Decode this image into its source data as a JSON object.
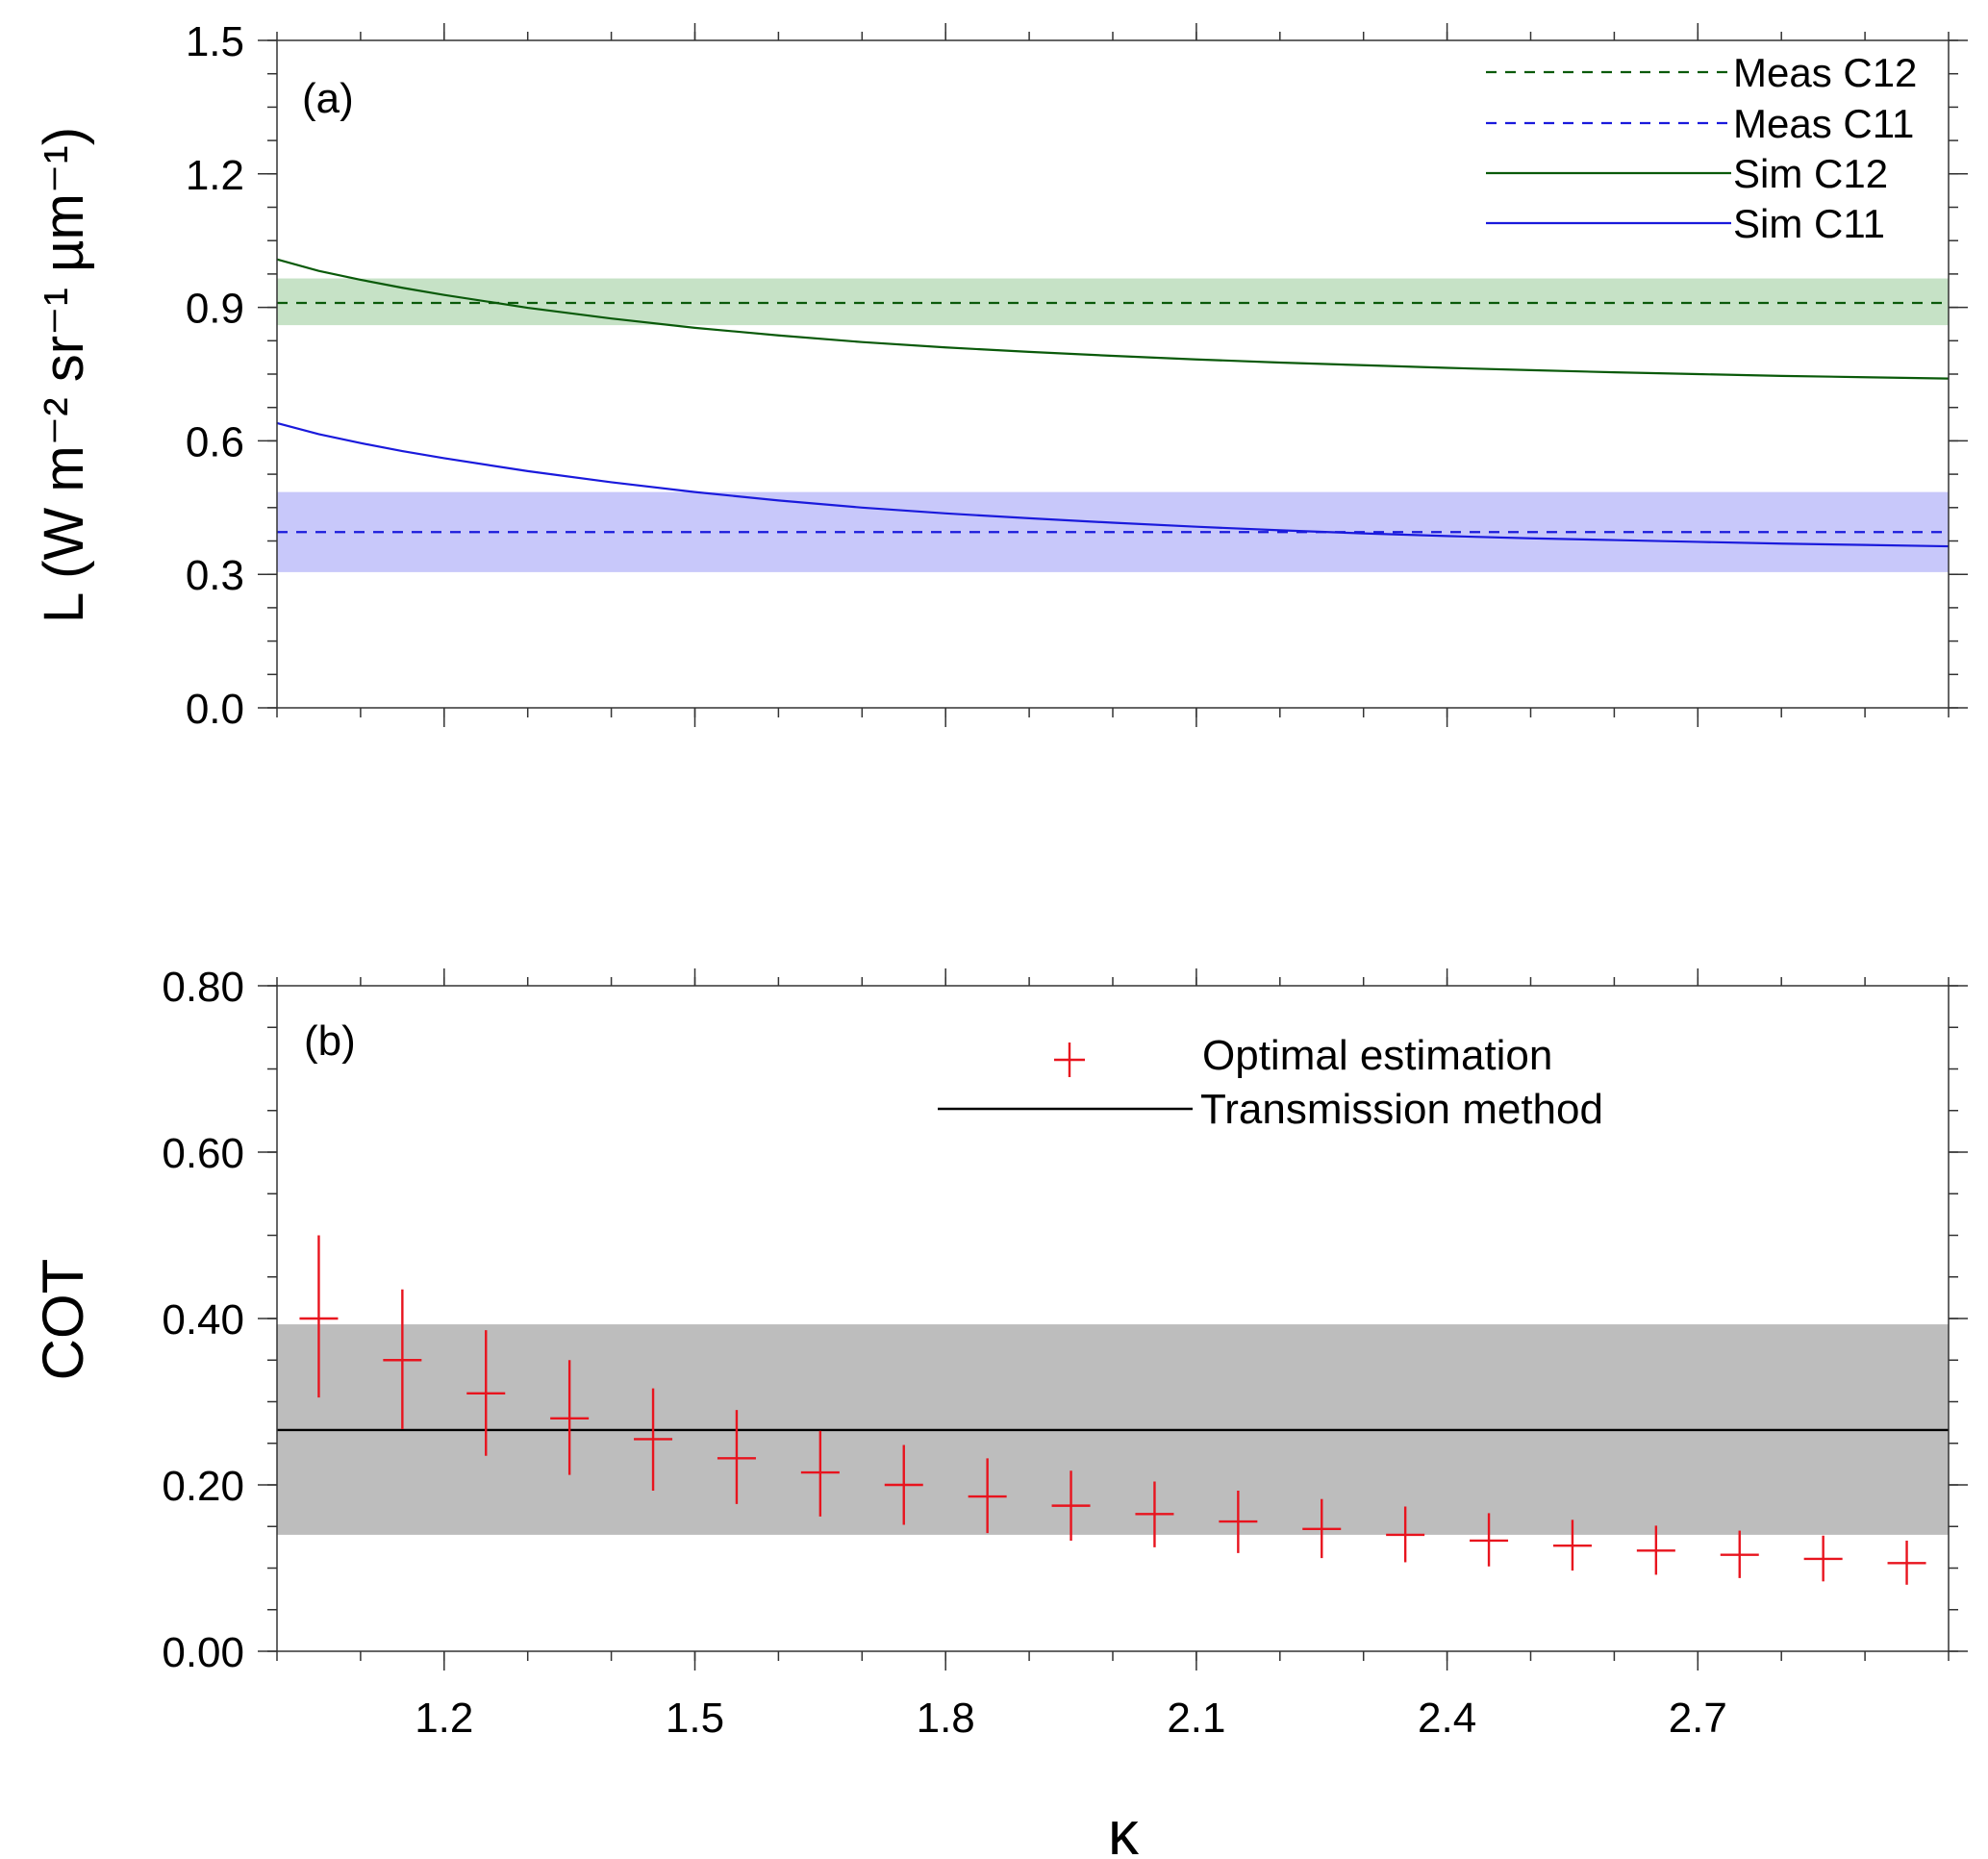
{
  "chart_data": [
    {
      "panel": "(a)",
      "type": "line",
      "ylabel": "L (W m⁻² sr⁻¹ µm⁻¹)",
      "xlim": [
        1.0,
        3.0
      ],
      "ylim": [
        0.0,
        1.5
      ],
      "yticks": [
        "0.0",
        "0.3",
        "0.6",
        "0.9",
        "1.2",
        "1.5"
      ],
      "legend_position": "top-right",
      "bands": [
        {
          "name": "Meas C12",
          "color": "#c6e2c6",
          "y_low": 0.86,
          "y_high": 0.965
        },
        {
          "name": "Meas C11",
          "color": "#c8c8fa",
          "y_low": 0.305,
          "y_high": 0.485
        }
      ],
      "series": [
        {
          "name": "Meas C12",
          "style": "dashed",
          "color": "#0a5a0a",
          "x": [
            1.0,
            3.0
          ],
          "y": [
            0.91,
            0.91
          ]
        },
        {
          "name": "Meas C11",
          "style": "dashed",
          "color": "#1a1adc",
          "x": [
            1.0,
            3.0
          ],
          "y": [
            0.395,
            0.395
          ]
        },
        {
          "name": "Sim C12",
          "style": "solid",
          "color": "#0a5a0a",
          "x": [
            1.0,
            1.05,
            1.1,
            1.15,
            1.2,
            1.3,
            1.4,
            1.5,
            1.6,
            1.7,
            1.8,
            1.9,
            2.0,
            2.1,
            2.2,
            2.3,
            2.4,
            2.5,
            2.6,
            2.7,
            2.8,
            2.9,
            3.0
          ],
          "y": [
            1.008,
            0.982,
            0.962,
            0.944,
            0.928,
            0.899,
            0.875,
            0.854,
            0.837,
            0.822,
            0.81,
            0.8,
            0.791,
            0.783,
            0.776,
            0.77,
            0.764,
            0.759,
            0.754,
            0.75,
            0.746,
            0.743,
            0.74
          ]
        },
        {
          "name": "Sim C11",
          "style": "solid",
          "color": "#1a1adc",
          "x": [
            1.0,
            1.05,
            1.1,
            1.15,
            1.2,
            1.3,
            1.4,
            1.5,
            1.6,
            1.7,
            1.8,
            1.9,
            2.0,
            2.1,
            2.2,
            2.3,
            2.4,
            2.5,
            2.6,
            2.7,
            2.8,
            2.9,
            3.0
          ],
          "y": [
            0.64,
            0.615,
            0.595,
            0.577,
            0.561,
            0.532,
            0.507,
            0.485,
            0.466,
            0.45,
            0.437,
            0.426,
            0.416,
            0.407,
            0.399,
            0.392,
            0.386,
            0.381,
            0.377,
            0.373,
            0.369,
            0.366,
            0.363
          ]
        }
      ]
    },
    {
      "panel": "(b)",
      "type": "scatter",
      "xlabel": "κ",
      "ylabel": "COT",
      "xlim": [
        1.0,
        3.0
      ],
      "ylim": [
        0.0,
        0.8
      ],
      "xticks": [
        "1.2",
        "1.5",
        "1.8",
        "2.1",
        "2.4",
        "2.7"
      ],
      "yticks": [
        "0.00",
        "0.20",
        "0.40",
        "0.60",
        "0.80"
      ],
      "legend_position": "top-center",
      "band": {
        "color": "#bdbdbd",
        "y_low": 0.14,
        "y_high": 0.393
      },
      "series": [
        {
          "name": "Optimal estimation",
          "marker": "plus",
          "color": "#e8141e",
          "x": [
            1.05,
            1.15,
            1.25,
            1.35,
            1.45,
            1.55,
            1.65,
            1.75,
            1.85,
            1.95,
            2.05,
            2.15,
            2.25,
            2.35,
            2.45,
            2.55,
            2.65,
            2.75,
            2.85,
            2.95
          ],
          "y": [
            0.4,
            0.35,
            0.31,
            0.28,
            0.255,
            0.232,
            0.215,
            0.2,
            0.186,
            0.175,
            0.165,
            0.156,
            0.147,
            0.14,
            0.133,
            0.127,
            0.121,
            0.116,
            0.111,
            0.106
          ],
          "y_err_low": [
            0.305,
            0.267,
            0.235,
            0.212,
            0.193,
            0.177,
            0.162,
            0.152,
            0.142,
            0.133,
            0.125,
            0.118,
            0.112,
            0.107,
            0.102,
            0.097,
            0.092,
            0.088,
            0.084,
            0.08
          ],
          "y_err_high": [
            0.5,
            0.435,
            0.386,
            0.35,
            0.316,
            0.29,
            0.265,
            0.248,
            0.232,
            0.217,
            0.204,
            0.193,
            0.183,
            0.174,
            0.166,
            0.158,
            0.151,
            0.145,
            0.139,
            0.133
          ]
        },
        {
          "name": "Transmission method",
          "style": "solid",
          "color": "#000000",
          "x": [
            1.0,
            3.0
          ],
          "y": [
            0.266,
            0.266
          ]
        }
      ]
    }
  ]
}
